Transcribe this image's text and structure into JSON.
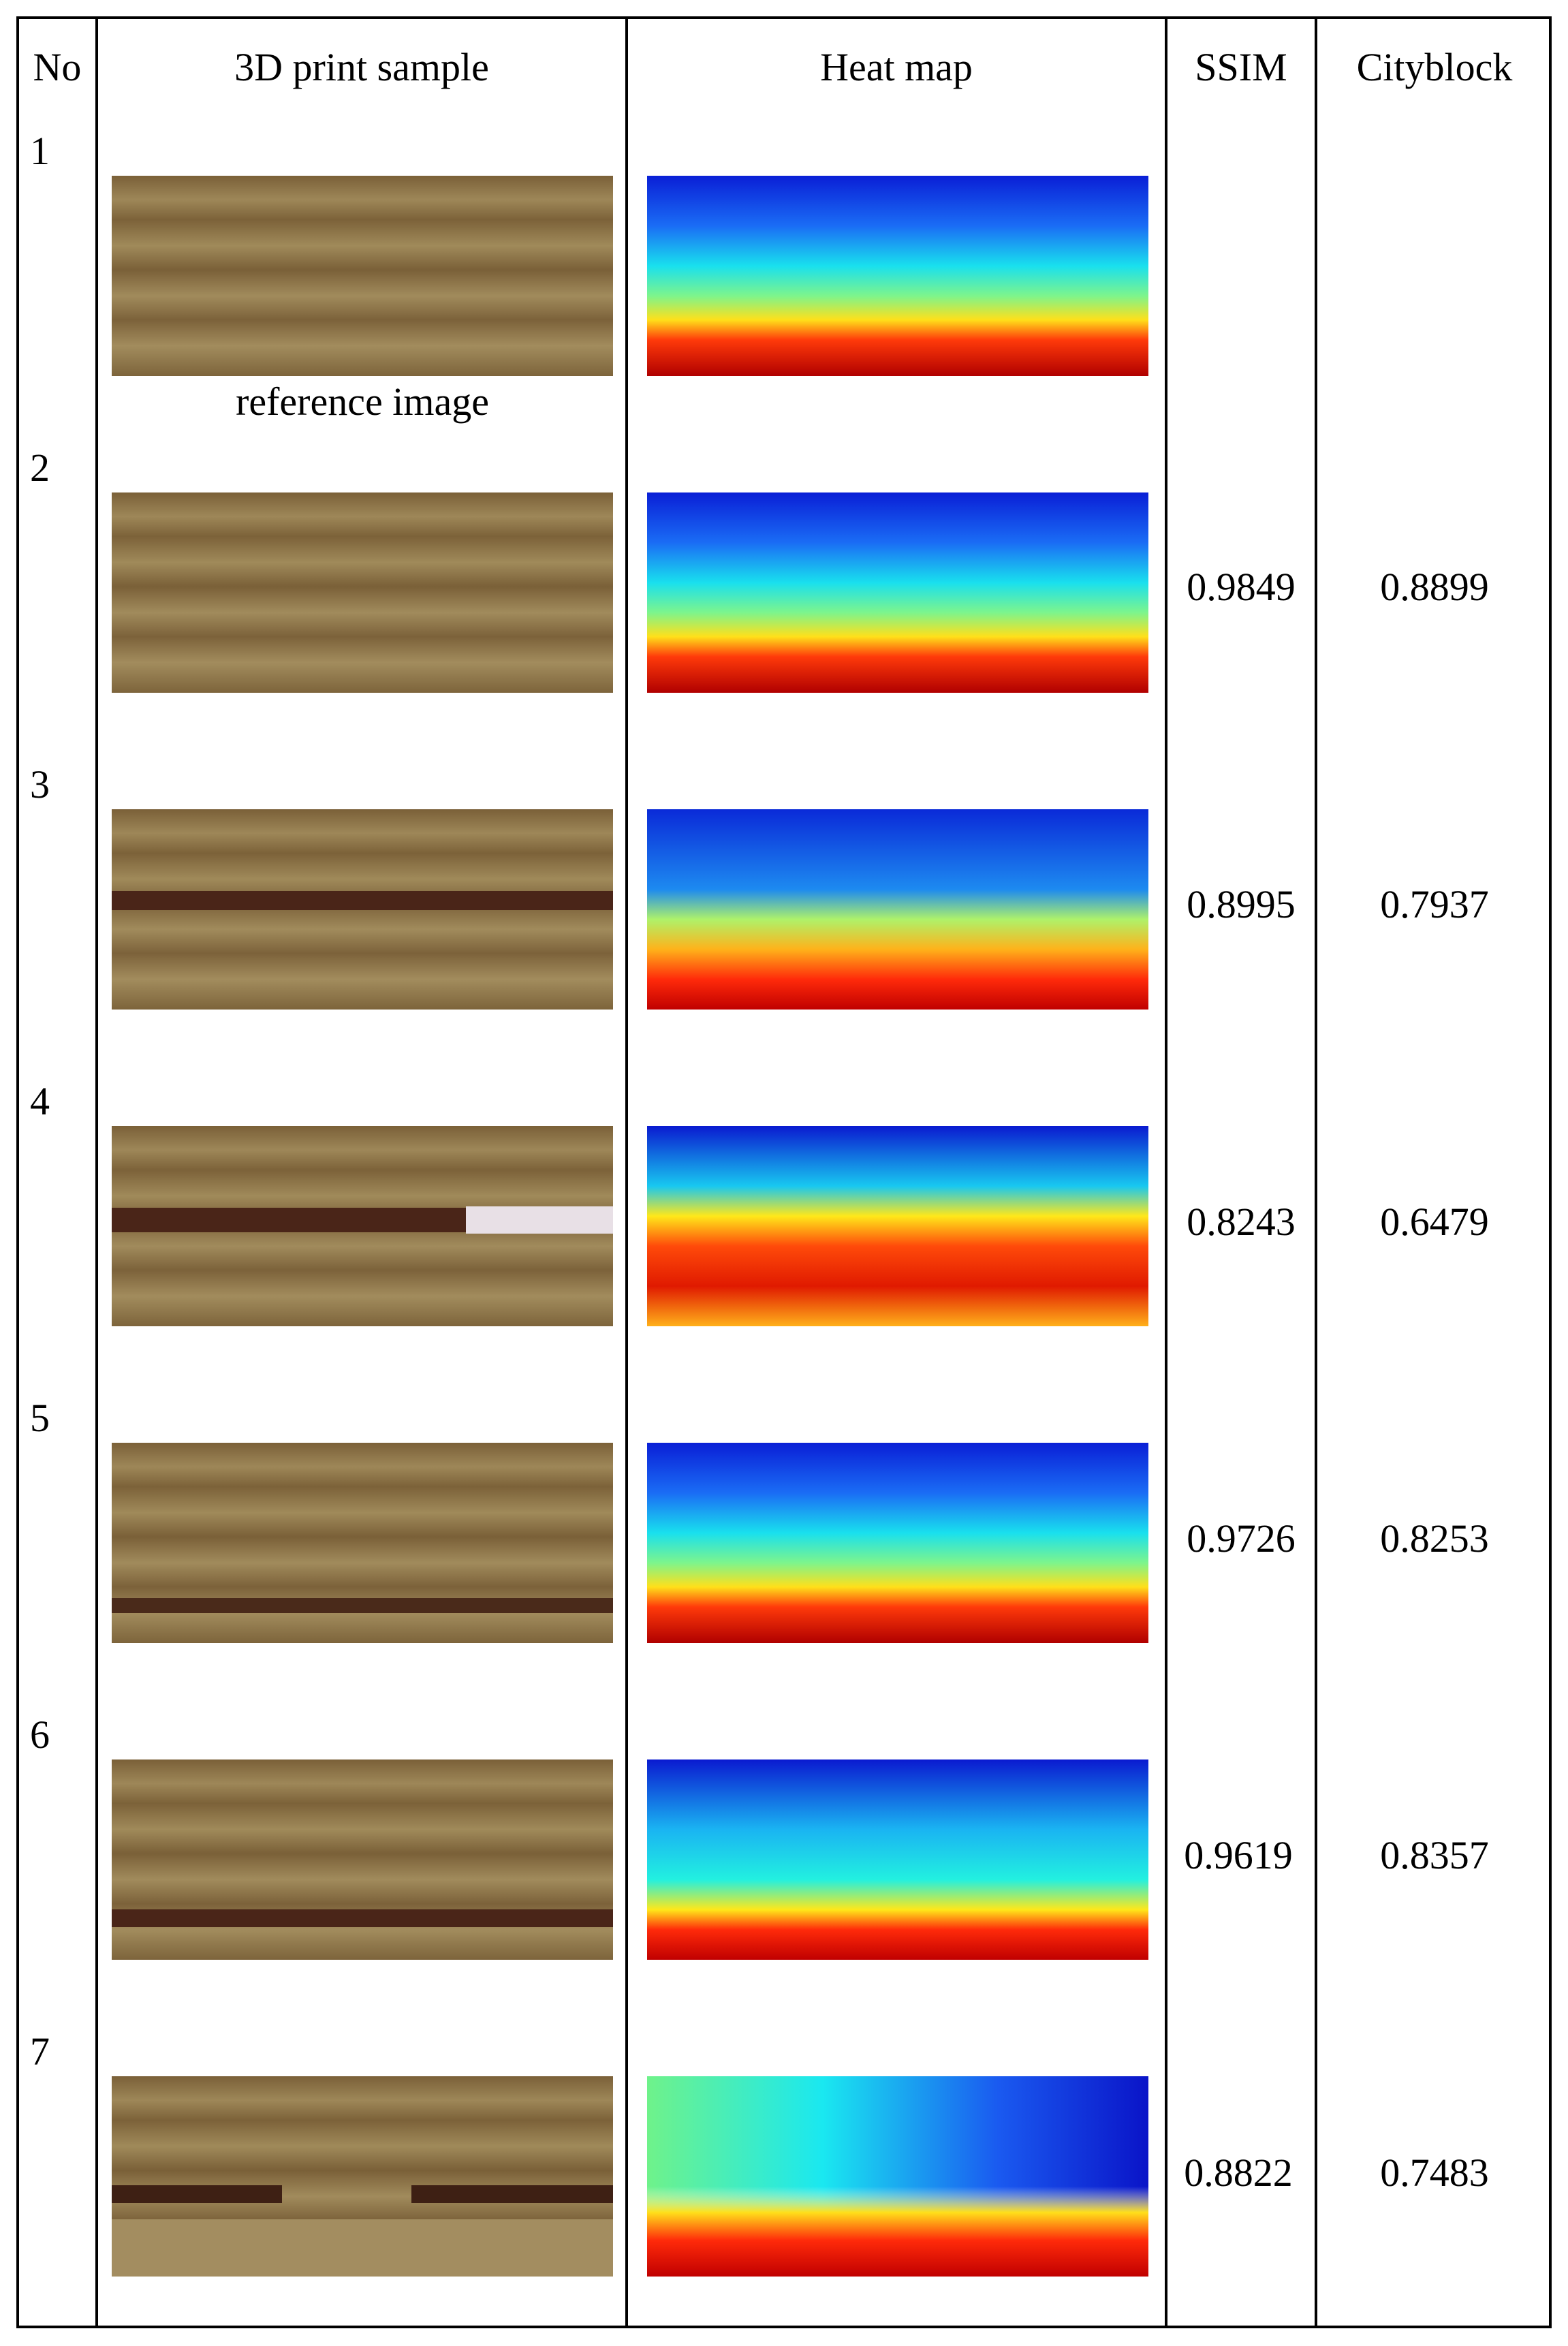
{
  "headers": {
    "no": "No",
    "sample": "3D print sample",
    "heatmap": "Heat map",
    "ssim": "SSIM",
    "cityblock": "Cityblock"
  },
  "reference_caption": "reference image",
  "rows": [
    {
      "no": "1",
      "ssim": "",
      "cityblock": ""
    },
    {
      "no": "2",
      "ssim": "0.9849",
      "cityblock": "0.8899"
    },
    {
      "no": "3",
      "ssim": "0.8995",
      "cityblock": "0.7937"
    },
    {
      "no": "4",
      "ssim": "0.8243",
      "cityblock": "0.6479"
    },
    {
      "no": "5",
      "ssim": "0.9726",
      "cityblock": "0.8253"
    },
    {
      "no": "6",
      "ssim": "0.9619",
      "cityblock": "0.8357"
    },
    {
      "no": "7",
      "ssim": "0.8822",
      "cityblock": "0.7483"
    }
  ]
}
